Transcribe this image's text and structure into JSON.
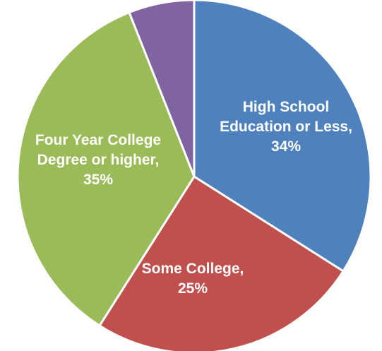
{
  "chart_data": {
    "type": "pie",
    "title": "",
    "slices": [
      {
        "label": "High School Education or Less",
        "value": 34,
        "display": "34%",
        "color": "#4F81BD",
        "label_lines": [
          "High School",
          "Education or Less,",
          "34%"
        ]
      },
      {
        "label": "Some College",
        "value": 25,
        "display": "25%",
        "color": "#C0504D",
        "label_lines": [
          "Some College,",
          "25%"
        ]
      },
      {
        "label": "Four Year College Degree or higher",
        "value": 35,
        "display": "35%",
        "color": "#9BBB59",
        "label_lines": [
          "Four Year College",
          "Degree or higher,",
          "35%"
        ]
      },
      {
        "label": "",
        "value": 6,
        "display": "",
        "color": "#8064A2",
        "label_lines": []
      }
    ],
    "start_angle_deg": 0,
    "direction": "clockwise",
    "legend": "none"
  }
}
